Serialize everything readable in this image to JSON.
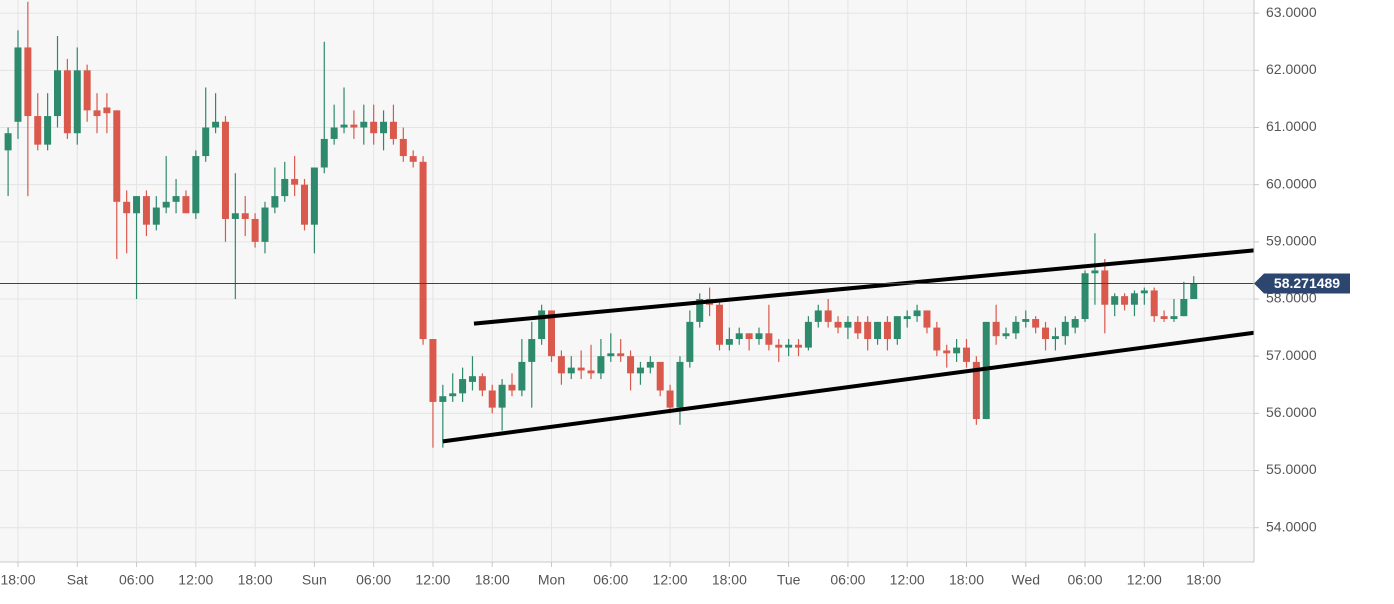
{
  "chart_data": {
    "type": "candlestick",
    "xlim": [
      -0.82,
      126.1
    ],
    "ylim": [
      53.4,
      63.23
    ],
    "xticks": [
      {
        "value": 1,
        "label": "18:00"
      },
      {
        "value": 7,
        "label": "Sat"
      },
      {
        "value": 13,
        "label": "06:00"
      },
      {
        "value": 19,
        "label": "12:00"
      },
      {
        "value": 25,
        "label": "18:00"
      },
      {
        "value": 31,
        "label": "Sun"
      },
      {
        "value": 37,
        "label": "06:00"
      },
      {
        "value": 43,
        "label": "12:00"
      },
      {
        "value": 49,
        "label": "18:00"
      },
      {
        "value": 55,
        "label": "Mon"
      },
      {
        "value": 61,
        "label": "06:00"
      },
      {
        "value": 67,
        "label": "12:00"
      },
      {
        "value": 73,
        "label": "18:00"
      },
      {
        "value": 79,
        "label": "Tue"
      },
      {
        "value": 85,
        "label": "06:00"
      },
      {
        "value": 91,
        "label": "12:00"
      },
      {
        "value": 97,
        "label": "18:00"
      },
      {
        "value": 103,
        "label": "Wed"
      },
      {
        "value": 109,
        "label": "06:00"
      },
      {
        "value": 115,
        "label": "12:00"
      },
      {
        "value": 121,
        "label": "18:00"
      }
    ],
    "yticks": [
      {
        "value": 54,
        "label": "54.0000"
      },
      {
        "value": 55,
        "label": "55.0000"
      },
      {
        "value": 56,
        "label": "56.0000"
      },
      {
        "value": 57,
        "label": "57.0000"
      },
      {
        "value": 58,
        "label": "58.0000"
      },
      {
        "value": 59,
        "label": "59.0000"
      },
      {
        "value": 60,
        "label": "60.0000"
      },
      {
        "value": 61,
        "label": "61.0000"
      },
      {
        "value": 62,
        "label": "62.0000"
      },
      {
        "value": 63,
        "label": "63.0000"
      }
    ],
    "grid": true,
    "up_color": "#2e8a6c",
    "down_color": "#d9594c",
    "open": [
      60.6,
      61.1,
      62.4,
      61.2,
      60.7,
      61.2,
      62.0,
      60.9,
      62.0,
      61.3,
      61.35,
      61.3,
      59.7,
      59.5,
      59.8,
      59.3,
      59.6,
      59.7,
      59.8,
      59.5,
      60.5,
      61.0,
      61.1,
      59.4,
      59.5,
      59.4,
      59.0,
      59.6,
      59.8,
      60.1,
      60.0,
      59.3,
      60.3,
      60.8,
      61.0,
      61.05,
      61.0,
      61.1,
      60.9,
      61.1,
      60.8,
      60.5,
      60.4,
      57.3,
      56.2,
      56.3,
      56.35,
      56.55,
      56.65,
      56.4,
      56.1,
      56.5,
      56.4,
      56.9,
      57.3,
      57.8,
      57.0,
      56.7,
      56.8,
      56.75,
      56.7,
      57.0,
      57.05,
      57.0,
      56.7,
      56.8,
      56.9,
      56.4,
      56.1,
      56.9,
      57.6,
      58.0,
      57.9,
      57.2,
      57.3,
      57.4,
      57.3,
      57.4,
      57.2,
      57.15,
      57.2,
      57.15,
      57.6,
      57.8,
      57.6,
      57.5,
      57.6,
      57.6,
      57.3,
      57.6,
      57.3,
      57.65,
      57.7,
      57.8,
      57.5,
      57.1,
      57.05,
      57.15,
      56.9,
      55.9,
      57.6,
      57.35,
      57.4,
      57.6,
      57.65,
      57.5,
      57.3,
      57.35,
      57.5,
      57.65,
      58.45,
      58.5,
      57.9,
      58.05,
      57.9,
      58.1,
      58.15,
      57.7,
      57.65,
      57.7,
      58.0
    ],
    "high": [
      61.0,
      62.7,
      63.2,
      61.6,
      61.6,
      62.6,
      62.2,
      62.4,
      62.1,
      61.6,
      61.6,
      61.3,
      59.9,
      59.8,
      59.9,
      59.8,
      60.5,
      60.1,
      59.9,
      60.6,
      61.7,
      61.6,
      61.2,
      60.2,
      59.8,
      59.5,
      59.7,
      60.3,
      60.4,
      60.5,
      60.1,
      60.3,
      62.5,
      61.4,
      61.7,
      61.3,
      61.4,
      61.4,
      61.3,
      61.4,
      61.0,
      60.6,
      60.5,
      57.3,
      56.5,
      56.7,
      56.8,
      57.0,
      56.7,
      56.5,
      56.6,
      56.7,
      57.3,
      57.6,
      57.9,
      57.8,
      57.1,
      57.0,
      57.1,
      57.2,
      57.3,
      57.4,
      57.3,
      57.1,
      56.9,
      57.0,
      56.9,
      56.5,
      57.0,
      57.8,
      58.1,
      58.2,
      58.0,
      57.5,
      57.5,
      57.4,
      57.5,
      57.9,
      57.3,
      57.3,
      57.3,
      57.7,
      57.9,
      58.0,
      57.7,
      57.7,
      57.7,
      57.7,
      57.6,
      57.7,
      57.7,
      57.8,
      57.9,
      57.8,
      57.6,
      57.2,
      57.3,
      57.3,
      57.0,
      57.6,
      57.9,
      57.5,
      57.7,
      57.8,
      57.7,
      57.6,
      57.5,
      57.7,
      57.7,
      58.5,
      59.15,
      58.7,
      58.1,
      58.1,
      58.15,
      58.2,
      58.2,
      57.8,
      58.0,
      58.3,
      58.4
    ],
    "low": [
      59.8,
      60.8,
      59.8,
      60.6,
      60.6,
      61.0,
      60.8,
      60.7,
      61.1,
      60.9,
      60.9,
      58.7,
      58.8,
      58.0,
      59.1,
      59.2,
      59.5,
      59.5,
      59.5,
      59.4,
      60.4,
      60.9,
      59.0,
      58.0,
      59.1,
      58.9,
      58.8,
      59.5,
      59.7,
      59.8,
      59.2,
      58.8,
      60.2,
      60.7,
      60.9,
      60.8,
      60.7,
      60.7,
      60.6,
      60.7,
      60.4,
      60.3,
      57.2,
      55.4,
      55.4,
      56.2,
      56.2,
      56.4,
      56.3,
      56.0,
      55.7,
      56.3,
      56.3,
      56.1,
      57.2,
      56.9,
      56.5,
      56.6,
      56.6,
      56.6,
      56.6,
      56.9,
      56.9,
      56.4,
      56.5,
      56.7,
      56.3,
      56.0,
      55.8,
      56.8,
      57.5,
      57.7,
      57.1,
      57.1,
      57.2,
      57.1,
      57.2,
      57.1,
      56.9,
      57.0,
      57.0,
      57.1,
      57.5,
      57.5,
      57.4,
      57.3,
      57.3,
      57.1,
      57.2,
      57.1,
      57.2,
      57.5,
      57.6,
      57.4,
      57.0,
      56.8,
      56.9,
      56.8,
      55.8,
      55.9,
      57.2,
      57.3,
      57.3,
      57.5,
      57.4,
      57.1,
      57.1,
      57.2,
      57.4,
      57.6,
      57.9,
      57.4,
      57.7,
      57.8,
      57.7,
      57.9,
      57.6,
      57.6,
      57.6,
      57.7,
      58.0
    ],
    "close": [
      60.9,
      62.4,
      61.2,
      60.7,
      61.2,
      62.0,
      60.9,
      62.0,
      61.3,
      61.2,
      61.25,
      59.7,
      59.5,
      59.8,
      59.3,
      59.6,
      59.7,
      59.8,
      59.5,
      60.5,
      61.0,
      61.1,
      59.4,
      59.5,
      59.4,
      59.0,
      59.6,
      59.8,
      60.1,
      60.0,
      59.3,
      60.3,
      60.8,
      61.0,
      61.05,
      61.0,
      61.1,
      60.9,
      61.1,
      60.8,
      60.5,
      60.4,
      57.3,
      56.2,
      56.3,
      56.35,
      56.6,
      56.65,
      56.4,
      56.1,
      56.5,
      56.4,
      56.9,
      57.3,
      57.8,
      57.0,
      56.7,
      56.8,
      56.75,
      56.7,
      57.0,
      57.05,
      57.0,
      56.7,
      56.8,
      56.9,
      56.4,
      56.1,
      56.9,
      57.6,
      58.0,
      57.9,
      57.2,
      57.3,
      57.4,
      57.3,
      57.4,
      57.2,
      57.15,
      57.2,
      57.15,
      57.6,
      57.8,
      57.6,
      57.5,
      57.6,
      57.4,
      57.3,
      57.6,
      57.3,
      57.7,
      57.7,
      57.8,
      57.5,
      57.1,
      57.05,
      57.15,
      56.9,
      55.9,
      57.6,
      57.35,
      57.4,
      57.6,
      57.65,
      57.5,
      57.3,
      57.35,
      57.6,
      57.65,
      58.45,
      58.5,
      57.9,
      58.05,
      57.9,
      58.1,
      58.15,
      57.7,
      57.65,
      57.7,
      58.0,
      58.27
    ],
    "last_price": 58.271489,
    "last_price_color": "#2c4670",
    "trend_lines": [
      {
        "x": [
          47.15,
          126.1
        ],
        "y": [
          57.57,
          58.85
        ]
      },
      {
        "x": [
          44.0,
          126.1
        ],
        "y": [
          55.51,
          57.41
        ]
      }
    ]
  }
}
